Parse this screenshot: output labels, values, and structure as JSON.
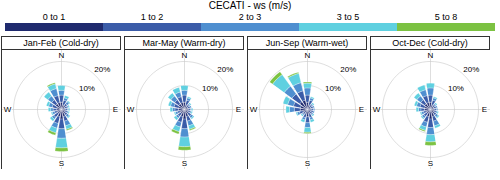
{
  "chart_data": {
    "type": "wind_rose",
    "title": "CECATI - ws (m/s)",
    "legend": "top",
    "categories": [
      "N",
      null,
      null,
      null,
      "E",
      null,
      null,
      null,
      "S",
      null,
      null,
      null,
      "W",
      null,
      null,
      null
    ],
    "rlim": [
      0,
      25
    ],
    "rticks": [
      {
        "value": 10,
        "label": "10%"
      },
      {
        "value": 20,
        "label": "20%"
      }
    ],
    "panels": [
      "Jan-Feb (Cold-dry)",
      "Mar-May (Warm-dry)",
      "Jun-Sep (Warm-wet)",
      "Oct-Dec (Cold-dry)"
    ],
    "series": [
      {
        "name": "0 to 1",
        "color": "#1f2a6e",
        "values": [
          [
            3,
            2,
            2,
            1.5,
            1.5,
            1.5,
            2,
            3,
            4,
            3,
            2,
            2,
            2,
            2,
            3,
            3
          ],
          [
            3,
            2,
            1.5,
            1.5,
            1.5,
            1.5,
            2,
            3,
            4,
            3,
            2,
            2,
            2.5,
            2.5,
            3,
            3
          ],
          [
            3,
            2,
            1.5,
            1.5,
            1.5,
            1.5,
            1.5,
            2,
            3,
            2,
            1.5,
            2,
            3,
            3,
            4,
            4
          ],
          [
            3,
            2,
            1.5,
            1.5,
            1.5,
            1.5,
            2,
            3,
            4,
            3,
            2,
            2,
            2.5,
            2.5,
            3,
            3
          ]
        ]
      },
      {
        "name": "1 to 2",
        "color": "#3b5ca8",
        "values": [
          [
            3,
            2,
            1,
            1,
            1,
            1,
            1,
            2,
            4,
            3,
            2,
            1,
            1.5,
            2,
            2,
            3
          ],
          [
            3,
            2,
            1,
            1,
            1,
            1,
            1.5,
            2,
            4,
            2.5,
            1.5,
            1,
            1.5,
            2,
            2,
            2.5
          ],
          [
            3,
            2,
            1,
            1,
            1,
            1,
            1,
            1.5,
            2.5,
            1.5,
            1,
            1.5,
            2.5,
            3,
            4,
            4
          ],
          [
            3,
            2,
            1,
            1,
            1,
            1,
            1,
            2,
            3.5,
            2.5,
            1.5,
            1,
            1.5,
            2,
            2,
            3
          ]
        ]
      },
      {
        "name": "2 to 3",
        "color": "#4f8fd0",
        "values": [
          [
            2,
            1,
            1,
            0.5,
            0.5,
            0.5,
            1,
            2,
            4,
            2,
            1,
            1,
            1,
            1.5,
            2,
            3
          ],
          [
            2,
            1,
            0.5,
            0.5,
            0.5,
            0.5,
            1,
            2,
            3.5,
            2,
            1,
            1,
            1,
            1.5,
            2,
            2
          ],
          [
            3,
            1,
            0.5,
            0.5,
            0.5,
            0.5,
            0.5,
            1,
            2,
            1,
            0.5,
            1,
            2,
            2.5,
            4,
            3.5
          ],
          [
            3,
            1,
            0.5,
            0.5,
            0.5,
            0.5,
            1,
            2,
            3,
            2,
            1,
            1,
            1,
            1.5,
            2,
            2.5
          ]
        ]
      },
      {
        "name": "3 to 5",
        "color": "#5fd0e0",
        "values": [
          [
            2,
            1,
            0.5,
            0.5,
            0.5,
            0.5,
            0.5,
            1.5,
            4,
            2,
            1,
            0.5,
            1,
            1,
            2,
            2
          ],
          [
            2,
            0.5,
            0.5,
            0,
            0.5,
            0.5,
            0.5,
            1.5,
            4,
            2,
            1,
            0.5,
            1,
            1,
            1.5,
            2
          ],
          [
            2,
            0.5,
            0.5,
            0,
            0,
            0,
            0.5,
            1,
            2,
            1,
            0.5,
            0.5,
            1.5,
            2,
            6,
            4
          ],
          [
            2,
            0.5,
            0.5,
            0,
            0,
            0.5,
            0.5,
            1,
            3,
            1.5,
            0.5,
            0.5,
            1,
            1,
            1.5,
            2
          ]
        ]
      },
      {
        "name": "5 to 8",
        "color": "#7cc242",
        "values": [
          [
            0,
            0,
            0,
            0,
            0,
            0,
            0,
            0.5,
            1.5,
            1,
            0,
            0,
            0,
            0,
            0,
            0.5
          ],
          [
            0,
            0,
            0,
            0,
            0,
            0,
            0,
            0.5,
            1.5,
            1,
            0,
            0,
            0,
            0,
            0,
            0
          ],
          [
            0.5,
            0,
            0,
            0,
            0,
            0,
            0,
            0,
            0.5,
            0,
            0,
            0,
            0,
            0,
            1.5,
            0.5
          ],
          [
            0,
            0,
            0,
            0,
            0,
            0,
            0,
            0,
            1.5,
            0.5,
            0,
            0,
            0,
            0,
            0,
            0
          ]
        ]
      }
    ]
  }
}
